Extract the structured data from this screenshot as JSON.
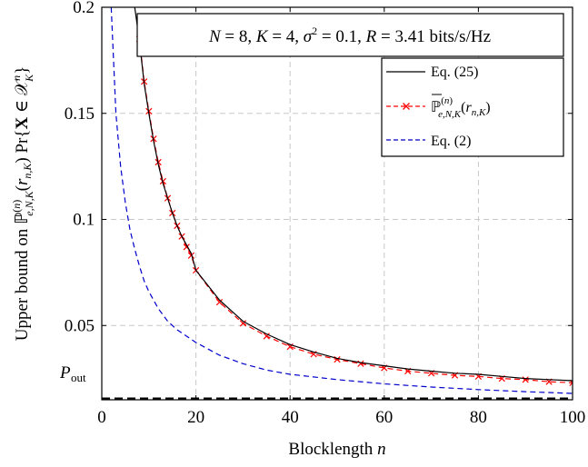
{
  "chart_data": {
    "type": "line",
    "title": "",
    "xlabel": "Blocklength n",
    "ylabel": "Upper bound on ℙ(n)e,N,K(rn,K) Pr{X ∈ 𝒳nK}",
    "xlim": [
      0,
      100
    ],
    "ylim": [
      0.015,
      0.2
    ],
    "xticks": [
      0,
      20,
      40,
      60,
      80,
      100
    ],
    "yticks": [
      0.05,
      0.1,
      0.15,
      0.2
    ],
    "ytick_labels": [
      "0.05",
      "0.1",
      "0.15",
      "0.2"
    ],
    "grid": true,
    "legend_position": "top-right",
    "annotation": "N = 8, K = 4, σ² = 0.1, R = 3.41 bits/s/Hz",
    "pout": {
      "label": "Pout",
      "value": 0.0155,
      "color": "#000000"
    },
    "series": [
      {
        "name": "Eq. (25)",
        "color": "#000000",
        "style": "solid",
        "x": [
          7,
          8,
          9,
          10,
          11,
          12,
          13,
          14,
          15,
          16,
          17,
          18,
          19,
          20,
          25,
          30,
          35,
          40,
          45,
          50,
          55,
          60,
          65,
          70,
          75,
          80,
          85,
          90,
          95,
          100
        ],
        "y": [
          0.2,
          0.184,
          0.164,
          0.15,
          0.137,
          0.126,
          0.117,
          0.11,
          0.103,
          0.097,
          0.092,
          0.088,
          0.084,
          0.076,
          0.062,
          0.052,
          0.046,
          0.041,
          0.0375,
          0.0345,
          0.0325,
          0.031,
          0.0295,
          0.0285,
          0.0275,
          0.027,
          0.026,
          0.025,
          0.0245,
          0.024
        ]
      },
      {
        "name": "ℙ(n)e,N,K(rn,K)",
        "color": "#ff0000",
        "style": "dashed",
        "marker": "x",
        "x": [
          8,
          9,
          10,
          11,
          12,
          13,
          14,
          15,
          16,
          17,
          18,
          19,
          20,
          25,
          30,
          35,
          40,
          45,
          50,
          55,
          60,
          65,
          70,
          75,
          80,
          85,
          90,
          95,
          100
        ],
        "y": [
          0.185,
          0.165,
          0.151,
          0.138,
          0.127,
          0.118,
          0.11,
          0.103,
          0.097,
          0.092,
          0.087,
          0.083,
          0.076,
          0.061,
          0.051,
          0.045,
          0.04,
          0.0365,
          0.034,
          0.032,
          0.03,
          0.0285,
          0.0275,
          0.0265,
          0.026,
          0.025,
          0.0245,
          0.0235,
          0.023
        ]
      },
      {
        "name": "Eq. (2)",
        "color": "#0000cc",
        "style": "dashed",
        "x": [
          2,
          3,
          4,
          5,
          6,
          7,
          8,
          9,
          10,
          12,
          14,
          16,
          18,
          20,
          25,
          30,
          35,
          40,
          50,
          60,
          70,
          80,
          90,
          100
        ],
        "y": [
          0.2,
          0.15,
          0.125,
          0.108,
          0.095,
          0.086,
          0.078,
          0.071,
          0.066,
          0.058,
          0.052,
          0.048,
          0.045,
          0.042,
          0.036,
          0.032,
          0.029,
          0.027,
          0.0245,
          0.0225,
          0.021,
          0.0198,
          0.0188,
          0.018
        ]
      }
    ]
  }
}
